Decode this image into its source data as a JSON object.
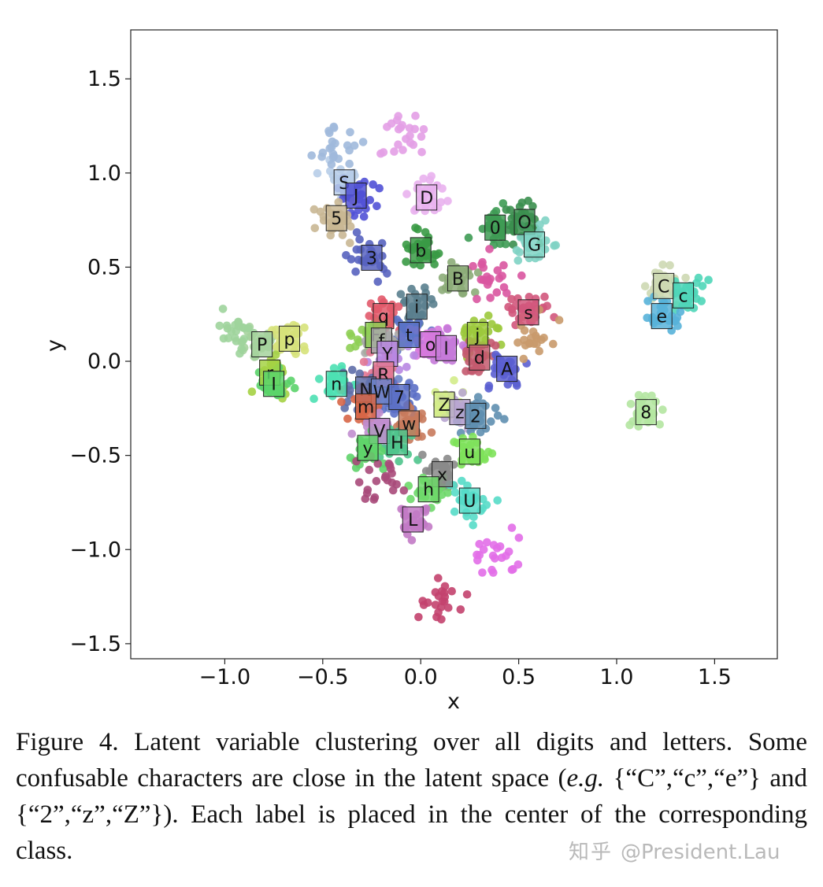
{
  "chart_data": {
    "type": "scatter",
    "xlabel": "x",
    "ylabel": "y",
    "xlim": [
      -1.48,
      1.82
    ],
    "ylim": [
      -1.58,
      1.76
    ],
    "xticks": [
      -1.0,
      -0.5,
      0.0,
      0.5,
      1.0,
      1.5
    ],
    "yticks": [
      -1.5,
      -1.0,
      -0.5,
      0.0,
      0.5,
      1.0,
      1.5
    ],
    "xtick_labels": [
      "−1.0",
      "−0.5",
      "0.0",
      "0.5",
      "1.0",
      "1.5"
    ],
    "ytick_labels": [
      "−1.5",
      "−1.0",
      "−0.5",
      "0.0",
      "0.5",
      "1.0",
      "1.5"
    ],
    "grid": false,
    "class_centers": [
      {
        "label": "S",
        "x": -0.39,
        "y": 0.95,
        "color": "#b7cde8"
      },
      {
        "label": "J",
        "x": -0.33,
        "y": 0.88,
        "color": "#5151d6"
      },
      {
        "label": "D",
        "x": 0.03,
        "y": 0.87,
        "color": "#e9b1ee"
      },
      {
        "label": "5",
        "x": -0.43,
        "y": 0.76,
        "color": "#c9b793"
      },
      {
        "label": "0",
        "x": 0.38,
        "y": 0.71,
        "color": "#3e9b54"
      },
      {
        "label": "O",
        "x": 0.53,
        "y": 0.74,
        "color": "#3b8f4f"
      },
      {
        "label": "G",
        "x": 0.58,
        "y": 0.62,
        "color": "#7fd3c4"
      },
      {
        "label": "3",
        "x": -0.25,
        "y": 0.55,
        "color": "#5863bf"
      },
      {
        "label": "b",
        "x": 0.0,
        "y": 0.59,
        "color": "#3a9a45"
      },
      {
        "label": "B",
        "x": 0.19,
        "y": 0.44,
        "color": "#8cac78"
      },
      {
        "label": "C",
        "x": 1.24,
        "y": 0.4,
        "color": "#cdd8b2"
      },
      {
        "label": "c",
        "x": 1.34,
        "y": 0.35,
        "color": "#4fd6b8"
      },
      {
        "label": "e",
        "x": 1.23,
        "y": 0.24,
        "color": "#58b3d9"
      },
      {
        "label": "s",
        "x": 0.55,
        "y": 0.26,
        "color": "#d2577c"
      },
      {
        "label": "i",
        "x": -0.02,
        "y": 0.29,
        "color": "#5a7f8e"
      },
      {
        "label": "q",
        "x": -0.19,
        "y": 0.24,
        "color": "#e25a6b"
      },
      {
        "label": "j",
        "x": 0.29,
        "y": 0.14,
        "color": "#9cc93c"
      },
      {
        "label": "t",
        "x": -0.06,
        "y": 0.14,
        "color": "#5a73c7"
      },
      {
        "label": "F",
        "x": -0.23,
        "y": 0.14,
        "color": "#8fcf55"
      },
      {
        "label": "f",
        "x": -0.2,
        "y": 0.11,
        "color": "#a8a8a8"
      },
      {
        "label": "P",
        "x": -0.81,
        "y": 0.09,
        "color": "#a6d39d"
      },
      {
        "label": "p",
        "x": -0.67,
        "y": 0.12,
        "color": "#d6e27a"
      },
      {
        "label": "o",
        "x": 0.05,
        "y": 0.09,
        "color": "#d779dd"
      },
      {
        "label": "l",
        "x": 0.13,
        "y": 0.07,
        "color": "#c57ad9"
      },
      {
        "label": "d",
        "x": 0.3,
        "y": 0.02,
        "color": "#c45a6f"
      },
      {
        "label": "Y",
        "x": -0.17,
        "y": 0.04,
        "color": "#b887e2"
      },
      {
        "label": "A",
        "x": 0.44,
        "y": -0.04,
        "color": "#5b5fd1"
      },
      {
        "label": "r",
        "x": -0.77,
        "y": -0.06,
        "color": "#a5d244"
      },
      {
        "label": "R",
        "x": -0.19,
        "y": -0.07,
        "color": "#e27893"
      },
      {
        "label": "I",
        "x": -0.75,
        "y": -0.12,
        "color": "#5bd36a"
      },
      {
        "label": "n",
        "x": -0.43,
        "y": -0.12,
        "color": "#4de0b3"
      },
      {
        "label": "N",
        "x": -0.28,
        "y": -0.15,
        "color": "#5f6ea8"
      },
      {
        "label": "W",
        "x": -0.2,
        "y": -0.16,
        "color": "#6c83c9"
      },
      {
        "label": "7",
        "x": -0.11,
        "y": -0.19,
        "color": "#5c70c6"
      },
      {
        "label": "m",
        "x": -0.28,
        "y": -0.24,
        "color": "#d76647"
      },
      {
        "label": "Z",
        "x": 0.12,
        "y": -0.23,
        "color": "#d3ec8a"
      },
      {
        "label": "z",
        "x": 0.2,
        "y": -0.27,
        "color": "#b9a6d1"
      },
      {
        "label": "2",
        "x": 0.28,
        "y": -0.29,
        "color": "#5f8fb0"
      },
      {
        "label": "w",
        "x": -0.06,
        "y": -0.33,
        "color": "#c87a5c"
      },
      {
        "label": "V",
        "x": -0.21,
        "y": -0.37,
        "color": "#c18ecf"
      },
      {
        "label": "H",
        "x": -0.12,
        "y": -0.43,
        "color": "#4fc48c"
      },
      {
        "label": "y",
        "x": -0.27,
        "y": -0.46,
        "color": "#5fd36a"
      },
      {
        "label": "u",
        "x": 0.25,
        "y": -0.48,
        "color": "#7ee25a"
      },
      {
        "label": "x",
        "x": 0.11,
        "y": -0.6,
        "color": "#8a8a8a"
      },
      {
        "label": "h",
        "x": 0.04,
        "y": -0.68,
        "color": "#6ed86a"
      },
      {
        "label": "U",
        "x": 0.25,
        "y": -0.74,
        "color": "#56dcc8"
      },
      {
        "label": "L",
        "x": -0.04,
        "y": -0.84,
        "color": "#c27ac5"
      },
      {
        "label": "8",
        "x": 1.15,
        "y": -0.27,
        "color": "#b4e6a1"
      }
    ],
    "extra_clusters": [
      {
        "x": -0.42,
        "y": 1.15,
        "color": "#a0b9dc"
      },
      {
        "x": -0.1,
        "y": 1.22,
        "color": "#e39ee5"
      },
      {
        "x": 0.1,
        "y": -1.28,
        "color": "#c3426e"
      },
      {
        "x": 0.4,
        "y": -1.02,
        "color": "#e26ee8"
      },
      {
        "x": 0.35,
        "y": 0.45,
        "color": "#d955a0"
      },
      {
        "x": -0.95,
        "y": 0.15,
        "color": "#9ed49c"
      },
      {
        "x": 0.58,
        "y": 0.15,
        "color": "#c99a6b"
      },
      {
        "x": -0.2,
        "y": -0.62,
        "color": "#a94a7a"
      }
    ]
  },
  "caption": {
    "figure_label": "Figure 4.",
    "text": "Latent variable clustering over all digits and letters. Some confusable characters are close in the latent space (",
    "eg": "e.g.",
    "text2": "{“C”,“c”,“e”} and {“2”,“z”,“Z”}). Each label is placed in the center of the corresponding class."
  },
  "watermark": {
    "brand": "知乎",
    "handle": "@President.Lau"
  }
}
